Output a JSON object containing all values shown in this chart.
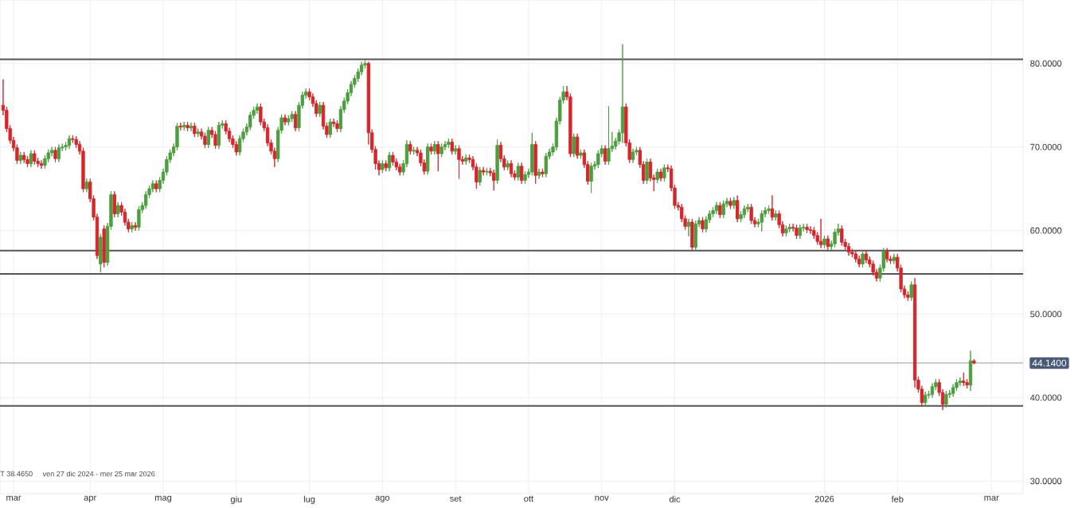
{
  "chart_data": {
    "type": "candlestick",
    "categories": [
      null,
      null,
      null,
      "mar",
      null,
      null,
      null,
      null,
      null,
      null,
      null,
      null,
      null,
      null,
      null,
      null,
      null,
      null,
      null,
      null,
      null,
      null,
      null,
      null,
      null,
      "apr",
      null,
      null,
      null,
      null,
      null,
      null,
      null,
      null,
      null,
      null,
      null,
      null,
      null,
      null,
      null,
      null,
      null,
      null,
      null,
      null,
      "mag",
      null,
      null,
      null,
      null,
      null,
      null,
      null,
      null,
      null,
      null,
      null,
      null,
      null,
      null,
      null,
      null,
      null,
      null,
      null,
      null,
      "giu",
      null,
      null,
      null,
      null,
      null,
      null,
      null,
      null,
      null,
      null,
      null,
      null,
      null,
      null,
      null,
      null,
      null,
      null,
      null,
      null,
      "lug",
      null,
      null,
      null,
      null,
      null,
      null,
      null,
      null,
      null,
      null,
      null,
      null,
      null,
      null,
      null,
      null,
      null,
      null,
      null,
      null,
      "ago",
      null,
      null,
      null,
      null,
      null,
      null,
      null,
      null,
      null,
      null,
      null,
      null,
      null,
      null,
      null,
      null,
      null,
      null,
      null,
      null,
      "set",
      null,
      null,
      null,
      null,
      null,
      null,
      null,
      null,
      null,
      null,
      null,
      null,
      null,
      null,
      null,
      null,
      null,
      null,
      null,
      null,
      "ott",
      null,
      null,
      null,
      null,
      null,
      null,
      null,
      null,
      null,
      null,
      null,
      null,
      null,
      null,
      null,
      null,
      null,
      null,
      null,
      null,
      "nov",
      null,
      null,
      null,
      null,
      null,
      null,
      null,
      null,
      null,
      null,
      null,
      null,
      null,
      null,
      null,
      null,
      null,
      null,
      null,
      null,
      "dic",
      null,
      null,
      null,
      null,
      null,
      null,
      null,
      null,
      null,
      null,
      null,
      null,
      null,
      null,
      null,
      null,
      null,
      null,
      null,
      null,
      null,
      null,
      null,
      null,
      null,
      null,
      null,
      null,
      null,
      null,
      null,
      null,
      null,
      null,
      null,
      null,
      null,
      null,
      null,
      null,
      null,
      null,
      "2026",
      null,
      null,
      null,
      null,
      null,
      null,
      null,
      null,
      null,
      null,
      null,
      null,
      null,
      null,
      null,
      null,
      null,
      null,
      null,
      null,
      "feb",
      null,
      null,
      null,
      null,
      null,
      null,
      null,
      null,
      null,
      null,
      null,
      null,
      null,
      null,
      null,
      null,
      null,
      null,
      null,
      null,
      null,
      null,
      null,
      null,
      null,
      null,
      "mar",
      null,
      null,
      null,
      null,
      null,
      null,
      null,
      null,
      null
    ],
    "ohlc": [
      [
        75.0,
        78.1,
        73.8,
        74.4
      ],
      [
        74.4,
        74.8,
        71.8,
        72.2
      ],
      [
        72.2,
        72.6,
        70.4,
        70.8
      ],
      [
        70.8,
        71.2,
        69.5,
        69.9
      ],
      [
        69.9,
        70.3,
        68.0,
        68.4
      ],
      [
        68.4,
        69.4,
        68.0,
        69.0
      ],
      [
        69.0,
        69.4,
        68.1,
        68.5
      ],
      [
        68.5,
        68.9,
        67.6,
        68.0
      ],
      [
        68.0,
        69.6,
        67.6,
        69.2
      ],
      [
        69.2,
        69.6,
        67.9,
        68.3
      ],
      [
        68.3,
        68.7,
        67.6,
        68.0
      ],
      [
        68.0,
        68.4,
        67.4,
        67.8
      ],
      [
        67.8,
        69.0,
        67.4,
        68.6
      ],
      [
        68.6,
        69.7,
        68.2,
        69.3
      ],
      [
        69.3,
        70.0,
        68.9,
        69.6
      ],
      [
        69.6,
        70.0,
        68.2,
        68.6
      ],
      [
        68.6,
        70.3,
        68.2,
        69.9
      ],
      [
        69.9,
        70.4,
        69.5,
        70.0
      ],
      [
        70.0,
        70.6,
        69.6,
        70.2
      ],
      [
        70.2,
        71.4,
        69.8,
        71.0
      ],
      [
        71.0,
        71.4,
        70.5,
        70.9
      ],
      [
        70.9,
        71.3,
        69.9,
        70.3
      ],
      [
        70.3,
        70.7,
        69.1,
        69.5
      ],
      [
        69.5,
        69.9,
        64.6,
        65.0
      ],
      [
        65.0,
        66.2,
        64.6,
        65.8
      ],
      [
        65.8,
        66.2,
        63.4,
        63.8
      ],
      [
        63.8,
        64.2,
        61.2,
        61.6
      ],
      [
        61.6,
        62.0,
        56.6,
        57.0
      ],
      [
        56.0,
        59.6,
        55.0,
        59.2
      ],
      [
        60.2,
        60.6,
        55.6,
        56.2
      ],
      [
        56.2,
        60.9,
        55.8,
        60.5
      ],
      [
        60.5,
        64.7,
        60.1,
        64.3
      ],
      [
        64.3,
        64.7,
        61.6,
        62.0
      ],
      [
        62.0,
        63.4,
        61.6,
        63.0
      ],
      [
        63.0,
        63.4,
        61.8,
        62.2
      ],
      [
        62.2,
        62.6,
        60.6,
        61.0
      ],
      [
        61.0,
        61.4,
        59.8,
        60.2
      ],
      [
        60.2,
        61.0,
        59.8,
        60.6
      ],
      [
        60.6,
        61.0,
        60.0,
        60.4
      ],
      [
        60.4,
        62.9,
        60.0,
        62.5
      ],
      [
        62.5,
        63.4,
        62.1,
        63.0
      ],
      [
        63.0,
        64.7,
        62.6,
        64.3
      ],
      [
        64.3,
        65.4,
        63.9,
        65.0
      ],
      [
        65.0,
        66.0,
        64.6,
        65.6
      ],
      [
        65.6,
        66.0,
        64.6,
        65.0
      ],
      [
        65.0,
        66.4,
        64.6,
        66.0
      ],
      [
        66.0,
        67.4,
        65.6,
        67.0
      ],
      [
        67.0,
        68.9,
        66.6,
        68.5
      ],
      [
        68.5,
        69.7,
        68.1,
        69.3
      ],
      [
        69.3,
        70.4,
        68.9,
        70.0
      ],
      [
        70.0,
        72.9,
        69.6,
        72.5
      ],
      [
        72.5,
        72.9,
        72.0,
        72.4
      ],
      [
        72.4,
        73.0,
        72.0,
        72.6
      ],
      [
        72.6,
        73.0,
        71.9,
        72.3
      ],
      [
        72.3,
        72.9,
        71.9,
        72.5
      ],
      [
        72.5,
        72.9,
        71.2,
        71.6
      ],
      [
        71.6,
        72.2,
        71.2,
        71.8
      ],
      [
        71.8,
        72.2,
        70.9,
        71.3
      ],
      [
        71.3,
        71.7,
        69.9,
        70.3
      ],
      [
        70.3,
        72.4,
        69.9,
        72.0
      ],
      [
        72.0,
        72.4,
        71.1,
        71.5
      ],
      [
        71.5,
        71.9,
        69.8,
        70.2
      ],
      [
        70.2,
        73.0,
        69.8,
        72.6
      ],
      [
        72.6,
        73.2,
        72.2,
        72.8
      ],
      [
        72.8,
        73.2,
        71.5,
        71.9
      ],
      [
        71.9,
        72.3,
        70.6,
        71.0
      ],
      [
        71.0,
        71.4,
        69.9,
        70.3
      ],
      [
        70.3,
        70.7,
        69.0,
        69.4
      ],
      [
        69.4,
        71.4,
        69.0,
        71.0
      ],
      [
        71.0,
        72.2,
        70.6,
        71.8
      ],
      [
        71.8,
        72.8,
        71.4,
        72.4
      ],
      [
        72.4,
        74.2,
        72.0,
        73.8
      ],
      [
        73.8,
        74.8,
        73.4,
        74.4
      ],
      [
        74.4,
        75.2,
        74.0,
        74.8
      ],
      [
        74.8,
        75.2,
        72.6,
        73.0
      ],
      [
        73.0,
        73.4,
        71.9,
        72.3
      ],
      [
        72.3,
        72.7,
        70.1,
        70.5
      ],
      [
        70.5,
        70.9,
        69.1,
        69.5
      ],
      [
        69.5,
        69.9,
        67.6,
        68.6
      ],
      [
        68.6,
        72.4,
        68.2,
        72.0
      ],
      [
        72.0,
        73.9,
        71.6,
        73.5
      ],
      [
        73.5,
        73.9,
        72.6,
        73.0
      ],
      [
        73.0,
        73.8,
        72.6,
        73.4
      ],
      [
        73.4,
        74.3,
        73.0,
        73.9
      ],
      [
        73.9,
        74.3,
        71.9,
        72.3
      ],
      [
        72.3,
        75.4,
        71.9,
        75.0
      ],
      [
        75.0,
        76.6,
        74.6,
        76.2
      ],
      [
        76.2,
        77.0,
        75.8,
        76.6
      ],
      [
        76.6,
        77.0,
        75.6,
        76.0
      ],
      [
        76.0,
        76.4,
        74.8,
        75.2
      ],
      [
        75.2,
        75.6,
        73.6,
        74.0
      ],
      [
        74.0,
        75.4,
        73.6,
        75.0
      ],
      [
        75.0,
        75.4,
        72.1,
        72.5
      ],
      [
        72.5,
        72.9,
        71.1,
        71.5
      ],
      [
        71.5,
        73.4,
        71.1,
        73.0
      ],
      [
        73.0,
        73.4,
        72.4,
        72.8
      ],
      [
        72.8,
        73.2,
        71.8,
        72.2
      ],
      [
        72.2,
        74.9,
        71.8,
        74.5
      ],
      [
        74.5,
        75.9,
        74.1,
        75.5
      ],
      [
        75.5,
        76.9,
        75.1,
        76.5
      ],
      [
        76.5,
        77.9,
        76.1,
        77.5
      ],
      [
        77.5,
        78.6,
        77.1,
        78.2
      ],
      [
        78.2,
        79.4,
        77.8,
        79.0
      ],
      [
        79.0,
        80.2,
        78.6,
        79.8
      ],
      [
        79.8,
        80.4,
        79.4,
        80.0
      ],
      [
        80.0,
        80.2,
        70.3,
        71.7
      ],
      [
        71.7,
        72.1,
        69.3,
        69.7
      ],
      [
        69.7,
        70.1,
        67.3,
        68.0
      ],
      [
        68.0,
        68.4,
        66.6,
        67.3
      ],
      [
        67.3,
        68.4,
        66.9,
        68.0
      ],
      [
        68.0,
        68.4,
        67.1,
        67.5
      ],
      [
        67.5,
        69.4,
        67.1,
        69.0
      ],
      [
        69.0,
        69.4,
        67.8,
        68.2
      ],
      [
        68.2,
        68.6,
        67.2,
        67.6
      ],
      [
        67.6,
        68.0,
        66.6,
        67.0
      ],
      [
        67.0,
        68.4,
        66.6,
        68.0
      ],
      [
        68.0,
        70.8,
        67.6,
        70.3
      ],
      [
        70.3,
        70.7,
        69.1,
        69.5
      ],
      [
        69.5,
        70.0,
        69.1,
        69.6
      ],
      [
        69.6,
        70.0,
        68.9,
        69.3
      ],
      [
        69.3,
        69.7,
        67.7,
        68.1
      ],
      [
        68.1,
        68.5,
        66.7,
        67.1
      ],
      [
        67.1,
        70.4,
        66.7,
        70.0
      ],
      [
        70.0,
        70.4,
        69.1,
        69.5
      ],
      [
        69.5,
        70.7,
        69.1,
        70.3
      ],
      [
        70.3,
        70.7,
        67.1,
        69.2
      ],
      [
        69.2,
        70.4,
        68.8,
        70.0
      ],
      [
        70.0,
        70.7,
        69.6,
        70.3
      ],
      [
        70.3,
        71.0,
        69.9,
        70.6
      ],
      [
        70.6,
        71.0,
        69.1,
        69.5
      ],
      [
        69.5,
        70.2,
        69.1,
        69.8
      ],
      [
        69.8,
        70.2,
        66.2,
        68.5
      ],
      [
        68.5,
        68.9,
        67.9,
        68.3
      ],
      [
        68.3,
        69.1,
        67.9,
        68.7
      ],
      [
        68.7,
        69.1,
        68.1,
        68.5
      ],
      [
        68.5,
        68.9,
        67.2,
        67.6
      ],
      [
        67.6,
        68.0,
        65.0,
        65.8
      ],
      [
        65.8,
        67.6,
        65.4,
        67.2
      ],
      [
        67.2,
        67.6,
        66.6,
        67.0
      ],
      [
        67.0,
        67.5,
        66.6,
        67.1
      ],
      [
        67.1,
        67.5,
        66.5,
        66.9
      ],
      [
        66.9,
        67.3,
        64.8,
        66.0
      ],
      [
        66.0,
        70.9,
        65.6,
        70.2
      ],
      [
        70.2,
        70.6,
        68.2,
        68.6
      ],
      [
        68.6,
        69.0,
        67.2,
        67.6
      ],
      [
        67.6,
        68.4,
        67.2,
        68.0
      ],
      [
        68.0,
        68.4,
        66.4,
        66.8
      ],
      [
        66.8,
        67.2,
        66.0,
        66.4
      ],
      [
        66.4,
        68.1,
        66.0,
        67.7
      ],
      [
        67.7,
        68.1,
        65.6,
        66.0
      ],
      [
        66.0,
        67.1,
        65.6,
        66.7
      ],
      [
        66.7,
        67.4,
        66.3,
        67.0
      ],
      [
        67.0,
        71.7,
        66.6,
        70.3
      ],
      [
        70.3,
        70.7,
        65.6,
        66.6
      ],
      [
        66.6,
        67.4,
        66.2,
        67.0
      ],
      [
        67.0,
        67.4,
        66.4,
        66.8
      ],
      [
        66.8,
        69.3,
        66.4,
        68.9
      ],
      [
        68.9,
        69.8,
        68.5,
        69.4
      ],
      [
        69.4,
        70.4,
        69.0,
        70.0
      ],
      [
        70.0,
        73.5,
        69.6,
        73.1
      ],
      [
        73.1,
        76.0,
        72.7,
        75.6
      ],
      [
        75.6,
        77.3,
        75.2,
        76.6
      ],
      [
        76.6,
        77.3,
        75.6,
        76.0
      ],
      [
        76.0,
        76.4,
        68.8,
        69.2
      ],
      [
        69.2,
        71.6,
        68.8,
        71.2
      ],
      [
        71.2,
        71.6,
        68.6,
        69.0
      ],
      [
        69.0,
        69.7,
        68.6,
        69.3
      ],
      [
        69.3,
        69.7,
        67.5,
        67.9
      ],
      [
        67.9,
        68.3,
        65.5,
        65.9
      ],
      [
        65.9,
        68.1,
        64.5,
        67.7
      ],
      [
        67.7,
        68.3,
        67.3,
        67.9
      ],
      [
        67.9,
        69.6,
        67.5,
        69.2
      ],
      [
        69.2,
        70.2,
        68.8,
        69.8
      ],
      [
        69.8,
        70.2,
        67.9,
        68.3
      ],
      [
        68.3,
        74.9,
        67.9,
        69.8
      ],
      [
        69.8,
        71.8,
        69.4,
        70.1
      ],
      [
        70.1,
        71.1,
        69.7,
        70.7
      ],
      [
        70.7,
        72.1,
        70.3,
        71.7
      ],
      [
        71.7,
        82.3,
        70.5,
        74.8
      ],
      [
        74.8,
        75.2,
        70.1,
        70.5
      ],
      [
        70.5,
        70.9,
        68.1,
        68.5
      ],
      [
        68.5,
        69.8,
        68.1,
        69.4
      ],
      [
        69.4,
        70.0,
        69.0,
        69.6
      ],
      [
        69.6,
        70.0,
        67.5,
        67.9
      ],
      [
        67.9,
        68.3,
        65.6,
        66.0
      ],
      [
        66.0,
        68.6,
        65.6,
        68.2
      ],
      [
        68.2,
        68.6,
        65.9,
        66.3
      ],
      [
        66.3,
        66.7,
        64.7,
        66.1
      ],
      [
        66.1,
        67.4,
        65.7,
        67.0
      ],
      [
        67.0,
        67.4,
        65.9,
        66.3
      ],
      [
        66.3,
        67.9,
        65.9,
        67.5
      ],
      [
        67.5,
        67.9,
        67.0,
        67.4
      ],
      [
        67.4,
        67.8,
        64.7,
        65.1
      ],
      [
        65.1,
        65.5,
        62.6,
        63.0
      ],
      [
        63.0,
        63.4,
        62.4,
        62.8
      ],
      [
        62.8,
        63.2,
        61.0,
        61.4
      ],
      [
        61.4,
        61.8,
        60.1,
        60.5
      ],
      [
        60.5,
        61.4,
        59.3,
        61.0
      ],
      [
        61.0,
        61.4,
        57.6,
        58.0
      ],
      [
        58.0,
        61.2,
        57.6,
        60.8
      ],
      [
        60.8,
        61.6,
        60.4,
        61.2
      ],
      [
        61.2,
        61.6,
        59.8,
        60.2
      ],
      [
        60.2,
        61.7,
        59.8,
        61.3
      ],
      [
        61.3,
        62.4,
        60.9,
        62.0
      ],
      [
        62.0,
        62.8,
        61.6,
        62.4
      ],
      [
        62.4,
        63.4,
        62.0,
        63.0
      ],
      [
        63.0,
        63.4,
        61.5,
        61.9
      ],
      [
        61.9,
        63.6,
        61.5,
        63.2
      ],
      [
        63.2,
        63.9,
        62.8,
        63.5
      ],
      [
        63.5,
        63.9,
        62.6,
        63.0
      ],
      [
        63.0,
        64.0,
        62.6,
        63.6
      ],
      [
        63.6,
        64.2,
        61.0,
        61.4
      ],
      [
        61.4,
        62.3,
        61.0,
        61.9
      ],
      [
        61.9,
        63.0,
        61.5,
        62.6
      ],
      [
        62.6,
        63.2,
        62.2,
        62.8
      ],
      [
        62.8,
        63.2,
        60.8,
        61.2
      ],
      [
        61.2,
        61.6,
        60.4,
        60.8
      ],
      [
        60.8,
        61.4,
        60.4,
        61.0
      ],
      [
        61.0,
        62.4,
        59.9,
        62.0
      ],
      [
        62.0,
        62.8,
        61.6,
        62.4
      ],
      [
        62.4,
        63.0,
        62.0,
        62.6
      ],
      [
        62.6,
        64.2,
        61.2,
        61.6
      ],
      [
        61.6,
        62.4,
        61.2,
        62.0
      ],
      [
        62.0,
        62.4,
        60.3,
        60.7
      ],
      [
        60.7,
        61.1,
        59.3,
        59.7
      ],
      [
        59.7,
        60.6,
        59.3,
        60.2
      ],
      [
        60.2,
        60.8,
        59.8,
        60.4
      ],
      [
        60.4,
        60.8,
        59.9,
        60.3
      ],
      [
        60.3,
        60.7,
        59.0,
        59.4
      ],
      [
        59.4,
        60.7,
        59.0,
        60.3
      ],
      [
        60.3,
        60.8,
        59.9,
        60.4
      ],
      [
        60.4,
        60.8,
        59.7,
        60.1
      ],
      [
        60.1,
        60.5,
        59.6,
        60.0
      ],
      [
        60.0,
        60.4,
        59.0,
        59.4
      ],
      [
        59.4,
        59.8,
        58.3,
        58.7
      ],
      [
        58.7,
        61.4,
        57.9,
        58.3
      ],
      [
        58.3,
        59.4,
        57.9,
        59.0
      ],
      [
        59.0,
        59.4,
        57.7,
        58.1
      ],
      [
        58.1,
        58.8,
        57.7,
        58.4
      ],
      [
        58.4,
        60.2,
        58.0,
        59.8
      ],
      [
        59.8,
        60.8,
        59.4,
        60.2
      ],
      [
        60.2,
        60.6,
        58.2,
        58.6
      ],
      [
        58.6,
        59.0,
        57.7,
        58.1
      ],
      [
        58.1,
        58.5,
        57.0,
        57.4
      ],
      [
        57.4,
        57.8,
        56.8,
        57.2
      ],
      [
        57.2,
        57.6,
        56.2,
        56.6
      ],
      [
        56.6,
        57.0,
        55.6,
        56.0
      ],
      [
        56.0,
        57.6,
        55.6,
        57.2
      ],
      [
        57.2,
        57.6,
        56.1,
        56.5
      ],
      [
        56.5,
        56.9,
        55.6,
        56.0
      ],
      [
        56.0,
        56.4,
        54.6,
        55.0
      ],
      [
        55.0,
        55.4,
        53.9,
        54.3
      ],
      [
        54.3,
        55.9,
        53.9,
        55.5
      ],
      [
        55.5,
        57.9,
        55.1,
        57.5
      ],
      [
        57.5,
        57.9,
        56.2,
        56.6
      ],
      [
        56.6,
        57.0,
        56.0,
        56.4
      ],
      [
        56.4,
        57.2,
        56.0,
        56.8
      ],
      [
        56.8,
        57.2,
        55.1,
        55.5
      ],
      [
        55.5,
        55.9,
        52.6,
        53.0
      ],
      [
        53.0,
        53.4,
        51.9,
        52.3
      ],
      [
        52.3,
        52.7,
        51.6,
        52.0
      ],
      [
        52.0,
        53.9,
        51.6,
        53.5
      ],
      [
        53.5,
        54.3,
        41.2,
        42.1
      ],
      [
        42.1,
        42.5,
        40.6,
        41.0
      ],
      [
        41.0,
        41.4,
        38.9,
        39.4
      ],
      [
        39.4,
        40.7,
        39.0,
        40.3
      ],
      [
        40.3,
        40.8,
        39.9,
        40.4
      ],
      [
        40.4,
        41.7,
        40.0,
        41.3
      ],
      [
        41.3,
        42.2,
        40.9,
        41.8
      ],
      [
        41.8,
        42.2,
        40.2,
        40.6
      ],
      [
        40.6,
        41.0,
        38.5,
        39.2
      ],
      [
        39.2,
        40.8,
        38.8,
        40.4
      ],
      [
        40.4,
        40.9,
        40.0,
        40.5
      ],
      [
        40.5,
        41.6,
        40.1,
        41.2
      ],
      [
        41.2,
        42.2,
        40.8,
        41.8
      ],
      [
        41.8,
        42.4,
        41.4,
        42.0
      ],
      [
        42.0,
        43.0,
        41.4,
        41.8
      ],
      [
        41.8,
        42.2,
        41.1,
        41.5
      ],
      [
        41.5,
        45.6,
        40.8,
        44.4
      ],
      [
        44.4,
        44.6,
        44.0,
        44.14
      ],
      null,
      null,
      null,
      null,
      null,
      null,
      null,
      null,
      null,
      null,
      null,
      null,
      null,
      null
    ],
    "colors": [
      "#d7262b",
      "#d7262b",
      "#d7262b",
      "#d7262b",
      "#d7262b",
      "#4c9e3f",
      "#d7262b",
      "#d7262b",
      "#4c9e3f",
      "#d7262b",
      "#d7262b",
      "#d7262b",
      "#4c9e3f",
      "#4c9e3f",
      "#4c9e3f",
      "#d7262b",
      "#4c9e3f",
      "#4c9e3f",
      "#4c9e3f",
      "#4c9e3f",
      "#d7262b",
      "#d7262b",
      "#d7262b",
      "#d7262b",
      "#4c9e3f",
      "#d7262b",
      "#d7262b",
      "#d7262b",
      "#4c9e3f",
      "#d7262b",
      "#4c9e3f",
      "#4c9e3f",
      "#d7262b",
      "#4c9e3f",
      "#d7262b",
      "#d7262b",
      "#d7262b",
      "#4c9e3f",
      "#d7262b",
      "#4c9e3f",
      "#4c9e3f",
      "#4c9e3f",
      "#4c9e3f",
      "#4c9e3f",
      "#d7262b",
      "#4c9e3f",
      "#4c9e3f",
      "#4c9e3f",
      "#4c9e3f",
      "#4c9e3f",
      "#4c9e3f",
      "#d7262b",
      "#4c9e3f",
      "#d7262b",
      "#4c9e3f",
      "#d7262b",
      "#4c9e3f",
      "#d7262b",
      "#d7262b",
      "#4c9e3f",
      "#d7262b",
      "#d7262b",
      "#4c9e3f",
      "#4c9e3f",
      "#d7262b",
      "#d7262b",
      "#d7262b",
      "#d7262b",
      "#4c9e3f",
      "#4c9e3f",
      "#4c9e3f",
      "#4c9e3f",
      "#4c9e3f",
      "#4c9e3f",
      "#d7262b",
      "#d7262b",
      "#d7262b",
      "#d7262b",
      "#d7262b",
      "#4c9e3f",
      "#4c9e3f",
      "#d7262b",
      "#4c9e3f",
      "#4c9e3f",
      "#d7262b",
      "#4c9e3f",
      "#4c9e3f",
      "#4c9e3f",
      "#d7262b",
      "#d7262b",
      "#d7262b",
      "#4c9e3f",
      "#d7262b",
      "#d7262b",
      "#4c9e3f",
      "#d7262b",
      "#d7262b",
      "#4c9e3f",
      "#4c9e3f",
      "#4c9e3f",
      "#4c9e3f",
      "#4c9e3f",
      "#4c9e3f",
      "#4c9e3f",
      "#4c9e3f",
      "#d7262b",
      "#d7262b",
      "#d7262b",
      "#d7262b",
      "#4c9e3f",
      "#d7262b",
      "#4c9e3f",
      "#d7262b",
      "#d7262b",
      "#d7262b",
      "#4c9e3f",
      "#4c9e3f",
      "#d7262b",
      "#4c9e3f",
      "#d7262b",
      "#d7262b",
      "#d7262b",
      "#4c9e3f",
      "#d7262b",
      "#4c9e3f",
      "#d7262b",
      "#4c9e3f",
      "#4c9e3f",
      "#4c9e3f",
      "#d7262b",
      "#4c9e3f",
      "#d7262b",
      "#d7262b",
      "#4c9e3f",
      "#d7262b",
      "#d7262b",
      "#d7262b",
      "#4c9e3f",
      "#d7262b",
      "#4c9e3f",
      "#d7262b",
      "#d7262b",
      "#4c9e3f",
      "#d7262b",
      "#d7262b",
      "#4c9e3f",
      "#d7262b",
      "#d7262b",
      "#4c9e3f",
      "#d7262b",
      "#4c9e3f",
      "#4c9e3f",
      "#4c9e3f",
      "#d7262b",
      "#4c9e3f",
      "#d7262b",
      "#4c9e3f",
      "#4c9e3f",
      "#4c9e3f",
      "#4c9e3f",
      "#4c9e3f",
      "#4c9e3f",
      "#d7262b",
      "#d7262b",
      "#4c9e3f",
      "#d7262b",
      "#4c9e3f",
      "#d7262b",
      "#d7262b",
      "#4c9e3f",
      "#4c9e3f",
      "#4c9e3f",
      "#4c9e3f",
      "#d7262b",
      "#4c9e3f",
      "#4c9e3f",
      "#4c9e3f",
      "#4c9e3f",
      "#4c9e3f",
      "#d7262b",
      "#d7262b",
      "#4c9e3f",
      "#4c9e3f",
      "#d7262b",
      "#d7262b",
      "#4c9e3f",
      "#d7262b",
      "#d7262b",
      "#4c9e3f",
      "#d7262b",
      "#4c9e3f",
      "#d7262b",
      "#d7262b",
      "#d7262b",
      "#d7262b",
      "#d7262b",
      "#d7262b",
      "#4c9e3f",
      "#d7262b",
      "#4c9e3f",
      "#4c9e3f",
      "#d7262b",
      "#4c9e3f",
      "#4c9e3f",
      "#4c9e3f",
      "#4c9e3f",
      "#d7262b",
      "#4c9e3f",
      "#4c9e3f",
      "#d7262b",
      "#4c9e3f",
      "#d7262b",
      "#4c9e3f",
      "#4c9e3f",
      "#4c9e3f",
      "#d7262b",
      "#d7262b",
      "#4c9e3f",
      "#4c9e3f",
      "#4c9e3f",
      "#4c9e3f",
      "#d7262b",
      "#4c9e3f",
      "#d7262b",
      "#d7262b",
      "#4c9e3f",
      "#4c9e3f",
      "#d7262b",
      "#d7262b",
      "#4c9e3f",
      "#4c9e3f",
      "#d7262b",
      "#d7262b",
      "#d7262b",
      "#d7262b",
      "#d7262b",
      "#4c9e3f",
      "#d7262b",
      "#4c9e3f",
      "#4c9e3f",
      "#4c9e3f",
      "#d7262b",
      "#d7262b",
      "#d7262b",
      "#d7262b",
      "#d7262b",
      "#d7262b",
      "#4c9e3f",
      "#d7262b",
      "#d7262b",
      "#d7262b",
      "#d7262b",
      "#4c9e3f",
      "#4c9e3f",
      "#d7262b",
      "#d7262b",
      "#4c9e3f",
      "#d7262b",
      "#d7262b",
      "#d7262b",
      "#d7262b",
      "#4c9e3f",
      "#d7262b",
      "#d7262b",
      "#d7262b",
      "#4c9e3f",
      "#4c9e3f",
      "#4c9e3f",
      "#4c9e3f",
      "#d7262b",
      "#d7262b",
      "#4c9e3f",
      "#4c9e3f",
      "#4c9e3f",
      "#4c9e3f",
      "#4c9e3f",
      "#d7262b",
      "#d7262b",
      "#4c9e3f",
      "#d7262b",
      null,
      null,
      null,
      null,
      null,
      null,
      null,
      null,
      null,
      null,
      null,
      null,
      null,
      null
    ],
    "ylim": [
      28.5,
      87.6
    ],
    "yticks": [
      {
        "value": 30,
        "label": "30.0000"
      },
      {
        "value": 40,
        "label": "40.0000"
      },
      {
        "value": 50,
        "label": "50.0000"
      },
      {
        "value": 60,
        "label": "60.0000"
      },
      {
        "value": 70,
        "label": "70.0000"
      },
      {
        "value": 80,
        "label": "80.0000"
      }
    ],
    "grid": true,
    "ref_lines": [
      {
        "axis": "y",
        "value": 80.5,
        "color": "#555555"
      },
      {
        "axis": "y",
        "value": 57.6,
        "color": "#555555"
      },
      {
        "axis": "y",
        "value": 54.8,
        "color": "#555555"
      },
      {
        "axis": "y",
        "value": 39.0,
        "color": "#555555"
      },
      {
        "axis": "y",
        "value": 44.14,
        "label": "44.1400",
        "color": "#999999"
      }
    ],
    "annotations": [
      "T 38.4650",
      "ven 27 dic 2024 - mer 25 mar 2026"
    ]
  }
}
